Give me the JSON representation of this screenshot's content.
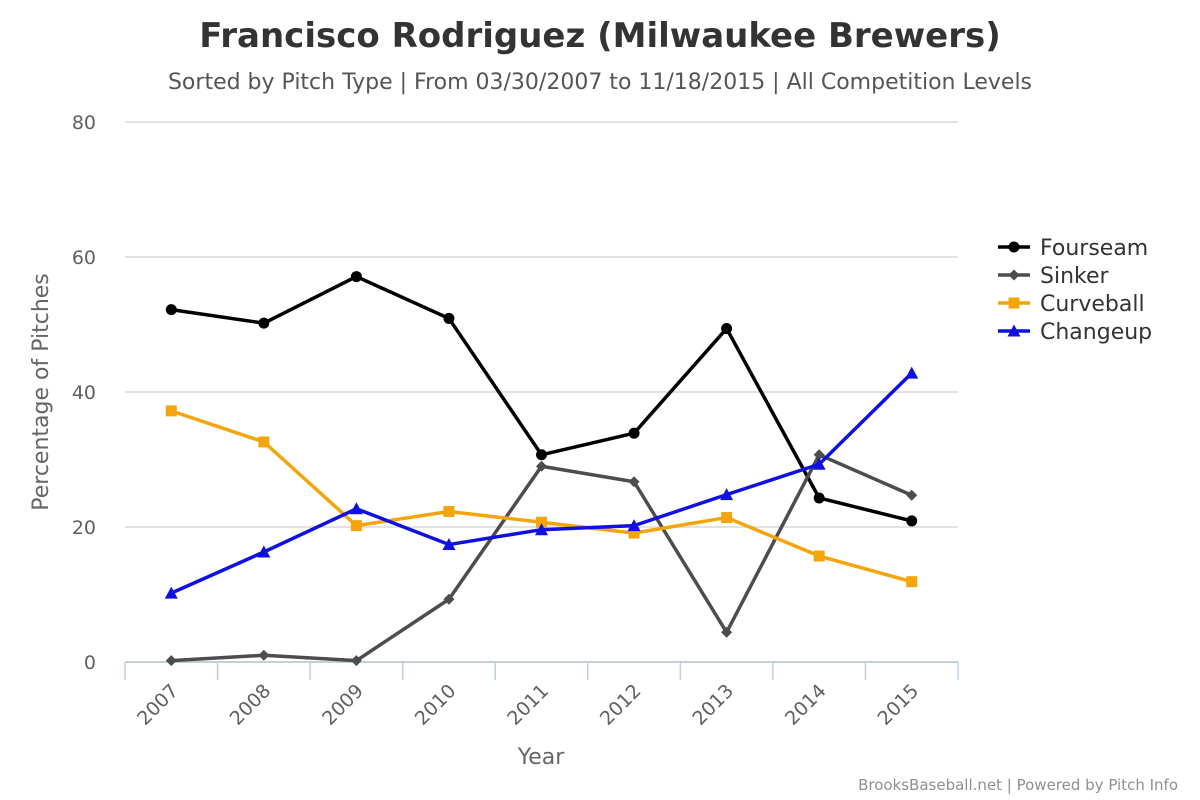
{
  "chart_data": {
    "type": "line",
    "title": "Francisco Rodriguez (Milwaukee Brewers)",
    "subtitle": "Sorted by Pitch Type | From 03/30/2007 to 11/18/2015 | All Competition Levels",
    "xlabel": "Year",
    "ylabel": "Percentage of Pitches",
    "categories": [
      "2007",
      "2008",
      "2009",
      "2010",
      "2011",
      "2012",
      "2013",
      "2014",
      "2015"
    ],
    "ylim": [
      0,
      80
    ],
    "yticks": [
      0,
      20,
      40,
      60,
      80
    ],
    "grid": true,
    "legend_position": "right",
    "series": [
      {
        "name": "Fourseam",
        "color": "#000000",
        "marker": "circle",
        "values": [
          52.2,
          50.2,
          57.1,
          50.9,
          30.7,
          33.9,
          49.4,
          24.3,
          20.9
        ]
      },
      {
        "name": "Sinker",
        "color": "#4d4d4d",
        "marker": "diamond",
        "values": [
          0.2,
          1.0,
          0.2,
          9.3,
          29.0,
          26.7,
          4.4,
          30.7,
          24.7
        ]
      },
      {
        "name": "Curveball",
        "color": "#f4a50c",
        "marker": "square",
        "values": [
          37.2,
          32.6,
          20.2,
          22.3,
          20.7,
          19.1,
          21.4,
          15.7,
          11.9
        ]
      },
      {
        "name": "Changeup",
        "color": "#1010e0",
        "marker": "triangle",
        "values": [
          10.2,
          16.3,
          22.7,
          17.4,
          19.6,
          20.2,
          24.8,
          29.3,
          42.8
        ]
      }
    ]
  },
  "credits": "BrooksBaseball.net | Powered by Pitch Info"
}
